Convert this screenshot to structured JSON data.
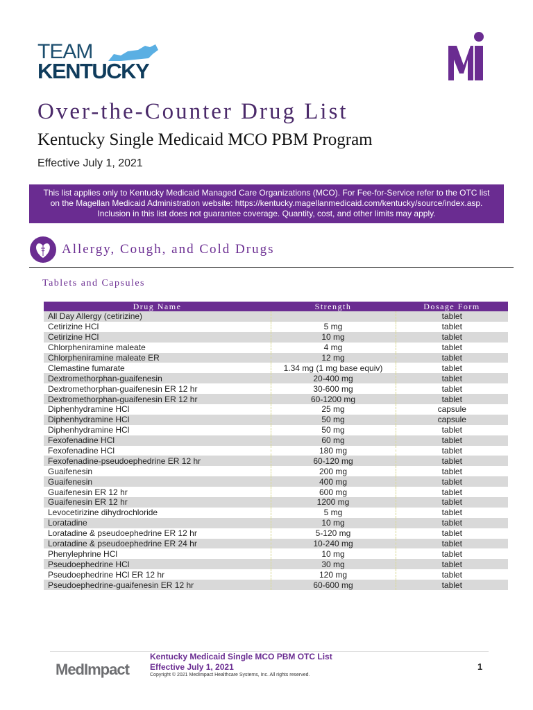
{
  "header": {
    "logo_left": "TEAM KENTUCKY",
    "logo_right": "MedImpact",
    "title": "Over-the-Counter Drug List",
    "subtitle": "Kentucky Single Medicaid MCO PBM Program",
    "effective": "Effective July 1, 2021"
  },
  "banner": {
    "line1": "This list applies only to Kentucky Medicaid Managed Care Organizations (MCO). For Fee-for-Service refer to the OTC list",
    "line2": "on the Magellan Medicaid Administration website: https://kentucky.magellanmedicaid.com/kentucky/source/index.asp.",
    "line3": "Inclusion in this list does not guarantee coverage. Quantity, cost, and other limits may apply."
  },
  "section": {
    "icon": "heart-caduceus-icon",
    "title": "Allergy, Cough, and Cold Drugs",
    "subtitle": "Tablets and Capsules"
  },
  "table": {
    "headers": [
      "Drug Name",
      "Strength",
      "Dosage Form"
    ],
    "rows": [
      [
        "All Day Allergy (cetirizine)",
        "",
        "tablet"
      ],
      [
        "Cetirizine HCl",
        "5 mg",
        "tablet"
      ],
      [
        "Cetirizine HCl",
        "10 mg",
        "tablet"
      ],
      [
        "Chlorpheniramine maleate",
        "4 mg",
        "tablet"
      ],
      [
        "Chlorpheniramine maleate ER",
        "12 mg",
        "tablet"
      ],
      [
        "Clemastine fumarate",
        "1.34 mg (1 mg base equiv)",
        "tablet"
      ],
      [
        "Dextromethorphan-guaifenesin",
        "20-400 mg",
        "tablet"
      ],
      [
        "Dextromethorphan-guaifenesin ER 12 hr",
        "30-600 mg",
        "tablet"
      ],
      [
        "Dextromethorphan-guaifenesin ER 12 hr",
        "60-1200 mg",
        "tablet"
      ],
      [
        "Diphenhydramine HCl",
        "25 mg",
        "capsule"
      ],
      [
        "Diphenhydramine HCl",
        "50 mg",
        "capsule"
      ],
      [
        "Diphenhydramine HCl",
        "50 mg",
        "tablet"
      ],
      [
        "Fexofenadine HCl",
        "60 mg",
        "tablet"
      ],
      [
        "Fexofenadine HCl",
        "180 mg",
        "tablet"
      ],
      [
        "Fexofenadine-pseudoephedrine ER 12 hr",
        "60-120 mg",
        "tablet"
      ],
      [
        "Guaifenesin",
        "200 mg",
        "tablet"
      ],
      [
        "Guaifenesin",
        "400 mg",
        "tablet"
      ],
      [
        "Guaifenesin ER 12 hr",
        "600 mg",
        "tablet"
      ],
      [
        "Guaifenesin ER 12 hr",
        "1200 mg",
        "tablet"
      ],
      [
        "Levocetirizine dihydrochloride",
        "5 mg",
        "tablet"
      ],
      [
        "Loratadine",
        "10 mg",
        "tablet"
      ],
      [
        "Loratadine & pseudoephedrine ER 12 hr",
        "5-120 mg",
        "tablet"
      ],
      [
        "Loratadine & pseudoephedrine ER 24 hr",
        "10-240 mg",
        "tablet"
      ],
      [
        "Phenylephrine HCl",
        "10 mg",
        "tablet"
      ],
      [
        "Pseudoephedrine HCl",
        "30 mg",
        "tablet"
      ],
      [
        "Pseudoephedrine HCl ER 12 hr",
        "120 mg",
        "tablet"
      ],
      [
        "Pseudoephedrine-guaifenesin ER 12 hr",
        "60-600 mg",
        "tablet"
      ]
    ]
  },
  "footer": {
    "logo": "MedImpact",
    "line1": "Kentucky Medicaid Single MCO PBM OTC List",
    "line2": "Effective July 1, 2021",
    "copyright": "Copyright © 2021 MedImpact Healthcare Systems, Inc. All rights reserved.",
    "page": "1"
  },
  "colors": {
    "purple": "#6a2c91",
    "navy": "#0f3c5c",
    "ky_blue": "#5aafe3"
  }
}
